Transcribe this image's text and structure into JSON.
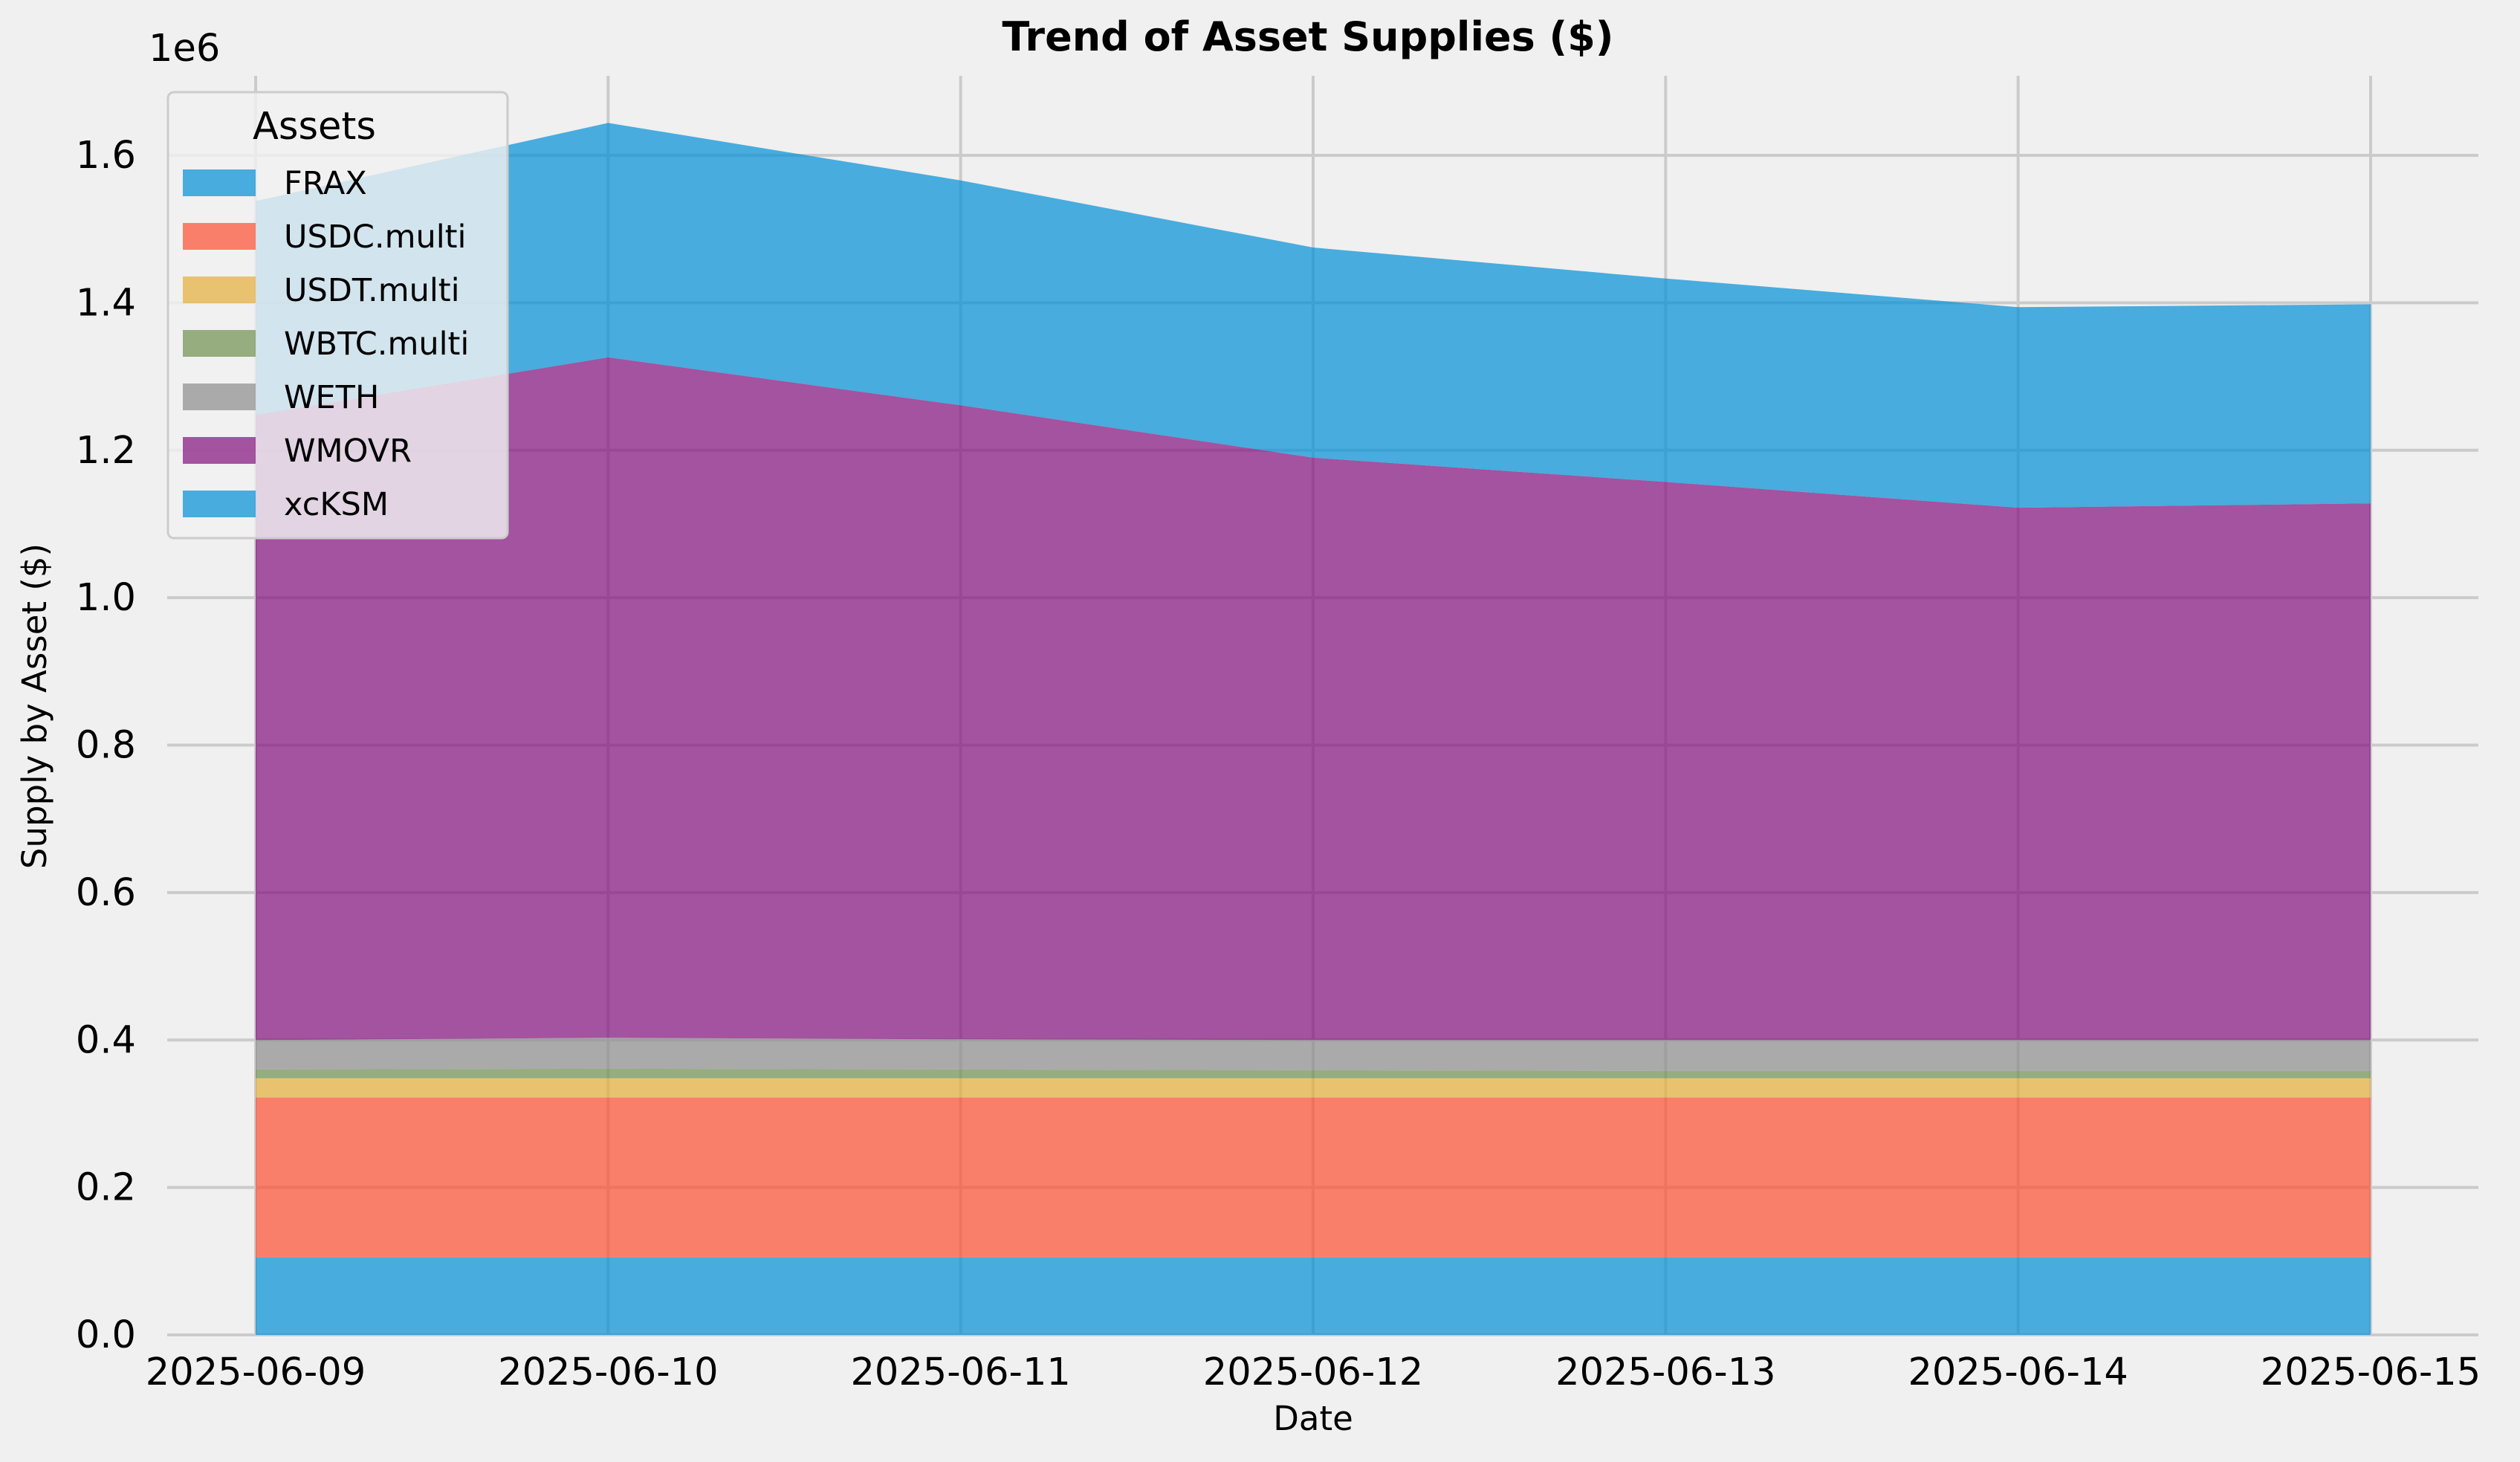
{
  "chart_data": {
    "type": "area",
    "stacked": true,
    "title": "Trend of Asset Supplies ($)",
    "xlabel": "Date",
    "ylabel": "Supply by Asset ($)",
    "y_multiplier_label": "1e6",
    "ylim": [
      0,
      1720000
    ],
    "yticks": [
      0,
      200000,
      400000,
      600000,
      800000,
      1000000,
      1200000,
      1400000,
      1600000
    ],
    "ytick_labels": [
      "0.0",
      "0.2",
      "0.4",
      "0.6",
      "0.8",
      "1.0",
      "1.2",
      "1.4",
      "1.6"
    ],
    "grid": true,
    "legend_title": "Assets",
    "legend_position": "upper-left",
    "x": [
      "2025-06-09",
      "2025-06-10",
      "2025-06-11",
      "2025-06-12",
      "2025-06-13",
      "2025-06-14",
      "2025-06-15"
    ],
    "series": [
      {
        "name": "FRAX",
        "color": "#008fd5",
        "values": [
          105000,
          105000,
          105000,
          105000,
          105000,
          105000,
          105000
        ]
      },
      {
        "name": "USDC.multi",
        "color": "#fc4f30",
        "values": [
          217000,
          217000,
          217000,
          217000,
          217000,
          217000,
          217000
        ]
      },
      {
        "name": "USDT.multi",
        "color": "#e5ae38",
        "values": [
          26000,
          26000,
          26000,
          26000,
          26000,
          26000,
          26000
        ]
      },
      {
        "name": "WBTC.multi",
        "color": "#6d904f",
        "values": [
          12000,
          13000,
          12000,
          11000,
          10000,
          10000,
          10000
        ]
      },
      {
        "name": "WETH",
        "color": "#8b8b8b",
        "values": [
          40000,
          42000,
          41000,
          41000,
          42000,
          42000,
          42000
        ]
      },
      {
        "name": "WMOVR",
        "color": "#810f7c",
        "values": [
          848000,
          923000,
          860000,
          790000,
          757000,
          722000,
          728000
        ]
      },
      {
        "name": "xcKSM",
        "color": "#008fd5",
        "values": [
          290000,
          318000,
          305000,
          285000,
          276000,
          272000,
          270000
        ]
      }
    ]
  }
}
